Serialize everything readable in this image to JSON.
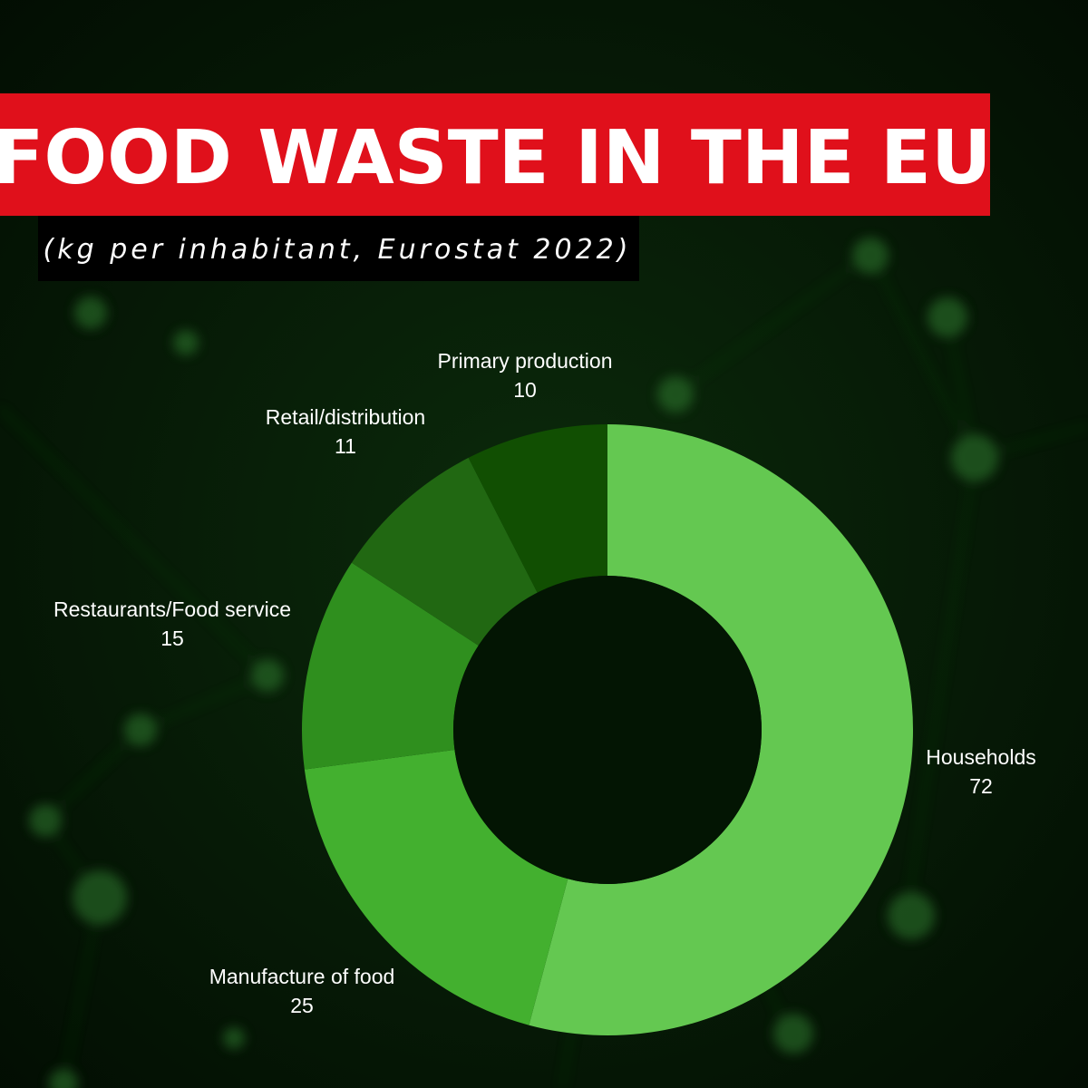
{
  "chart_data": {
    "type": "donut",
    "title": "FOOD WASTE IN THE EU",
    "subtitle": "(kg per inhabitant, Eurostat 2022)",
    "categories": [
      "Households",
      "Manufacture of food",
      "Restaurants/Food service",
      "Retail/distribution",
      "Primary production"
    ],
    "values": [
      72,
      25,
      15,
      11,
      10
    ],
    "colors": [
      "#64c851",
      "#43b02f",
      "#2f8f1e",
      "#216812",
      "#114f02"
    ]
  }
}
